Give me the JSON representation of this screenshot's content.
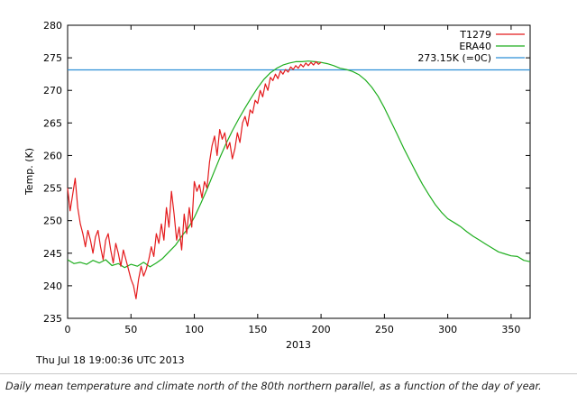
{
  "caption": "Daily mean temperature and climate north of the 80th northern parallel, as a function of the day of year.",
  "chart_data": {
    "type": "line",
    "title": "",
    "xlabel": "2013",
    "ylabel": "Temp. (K)",
    "xlim": [
      0,
      365
    ],
    "ylim": [
      235,
      280
    ],
    "x_ticks": [
      0,
      50,
      100,
      150,
      200,
      250,
      300,
      350
    ],
    "y_ticks": [
      235,
      240,
      245,
      250,
      255,
      260,
      265,
      270,
      275,
      280
    ],
    "grid": false,
    "legend_position": "top-right",
    "timestamp": "Thu Jul 18 19:00:36 UTC 2013",
    "series": [
      {
        "name": "T1279",
        "color": "#e41a1c",
        "x": [
          0,
          2,
          4,
          6,
          8,
          10,
          12,
          14,
          16,
          18,
          20,
          22,
          24,
          26,
          28,
          30,
          32,
          34,
          36,
          38,
          40,
          42,
          44,
          46,
          48,
          50,
          52,
          54,
          56,
          58,
          60,
          62,
          64,
          66,
          68,
          70,
          72,
          74,
          76,
          78,
          80,
          82,
          84,
          86,
          88,
          90,
          92,
          94,
          96,
          98,
          100,
          102,
          104,
          106,
          108,
          110,
          112,
          114,
          116,
          118,
          120,
          122,
          124,
          126,
          128,
          130,
          132,
          134,
          136,
          138,
          140,
          142,
          144,
          146,
          148,
          150,
          152,
          154,
          156,
          158,
          160,
          162,
          164,
          166,
          168,
          170,
          172,
          174,
          176,
          178,
          180,
          182,
          184,
          186,
          188,
          190,
          192,
          194,
          196,
          198,
          200
        ],
        "values": [
          255.0,
          251.5,
          254.0,
          256.5,
          252.0,
          249.5,
          248.0,
          246.0,
          248.5,
          247.0,
          245.0,
          247.5,
          248.5,
          246.0,
          244.0,
          247.0,
          248.0,
          245.5,
          243.5,
          246.5,
          245.0,
          243.0,
          245.5,
          244.0,
          242.5,
          241.0,
          240.0,
          238.0,
          241.0,
          243.0,
          241.5,
          242.5,
          244.0,
          246.0,
          244.5,
          248.0,
          246.5,
          249.5,
          247.0,
          252.0,
          249.0,
          254.5,
          251.0,
          247.0,
          249.0,
          245.5,
          251.0,
          248.0,
          252.0,
          249.0,
          256.0,
          254.5,
          255.5,
          253.5,
          256.0,
          255.0,
          259.0,
          261.5,
          263.0,
          260.0,
          264.0,
          262.5,
          263.5,
          261.0,
          262.0,
          259.5,
          261.0,
          263.5,
          262.0,
          265.0,
          266.0,
          264.5,
          267.0,
          266.5,
          268.5,
          268.0,
          270.0,
          269.0,
          271.0,
          270.0,
          272.0,
          271.5,
          272.5,
          271.8,
          273.0,
          272.5,
          273.2,
          272.8,
          273.6,
          273.2,
          273.8,
          273.4,
          274.0,
          273.6,
          274.2,
          273.8,
          274.3,
          273.9,
          274.4,
          274.0,
          274.3
        ]
      },
      {
        "name": "ERA40",
        "color": "#1fae1f",
        "x": [
          0,
          5,
          10,
          15,
          20,
          25,
          30,
          35,
          40,
          45,
          50,
          55,
          60,
          65,
          70,
          75,
          80,
          85,
          90,
          95,
          100,
          105,
          110,
          115,
          120,
          125,
          130,
          135,
          140,
          145,
          150,
          155,
          160,
          165,
          170,
          175,
          180,
          185,
          190,
          195,
          200,
          205,
          210,
          215,
          220,
          225,
          230,
          235,
          240,
          245,
          250,
          255,
          260,
          265,
          270,
          275,
          280,
          285,
          290,
          295,
          300,
          305,
          310,
          315,
          320,
          325,
          330,
          335,
          340,
          345,
          350,
          355,
          360,
          365
        ],
        "values": [
          244.0,
          243.4,
          243.6,
          243.3,
          243.9,
          243.5,
          244.0,
          243.1,
          243.4,
          242.8,
          243.3,
          243.0,
          243.6,
          242.9,
          243.5,
          244.2,
          245.2,
          246.2,
          247.6,
          248.8,
          250.5,
          252.6,
          254.8,
          257.2,
          259.6,
          261.8,
          263.8,
          265.6,
          267.3,
          268.9,
          270.4,
          271.7,
          272.7,
          273.4,
          273.9,
          274.2,
          274.4,
          274.4,
          274.5,
          274.4,
          274.3,
          274.1,
          273.8,
          273.4,
          273.2,
          272.9,
          272.4,
          271.6,
          270.5,
          269.1,
          267.3,
          265.3,
          263.3,
          261.2,
          259.3,
          257.4,
          255.6,
          254.0,
          252.5,
          251.3,
          250.3,
          249.7,
          249.1,
          248.3,
          247.6,
          247.0,
          246.4,
          245.8,
          245.2,
          244.9,
          244.6,
          244.5,
          243.9,
          243.7
        ]
      },
      {
        "name": "273.15K (=0C)",
        "color": "#2c8fd6",
        "x": [
          0,
          365
        ],
        "values": [
          273.15,
          273.15
        ]
      }
    ]
  }
}
